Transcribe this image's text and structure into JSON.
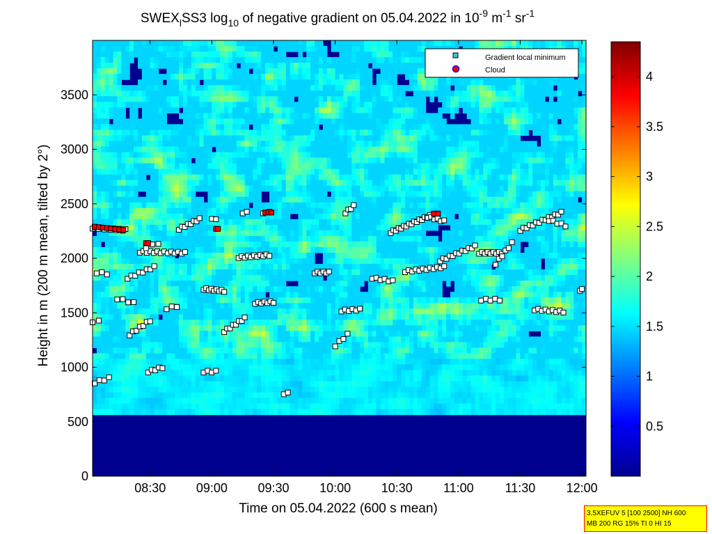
{
  "chart_data": {
    "type": "heatmap",
    "title": {
      "prefix": "SWEX",
      "sub_index": "l",
      "mid": "SS3 log",
      "sub_ten": "10",
      "middle": " of negative gradient on 05.04.2022 in 10",
      "exp_a": "-9",
      "unit_m": " m",
      "exp_b": "-1",
      "unit_sr": " sr",
      "exp_c": "-1"
    },
    "xlabel": "Time on 05.04.2022 (600 s mean)",
    "ylabel": "Height in m (200 m mean, tilted by 2°)",
    "x_ticks": [
      "08:30",
      "09:00",
      "09:30",
      "10:00",
      "10:30",
      "11:00",
      "11:30",
      "12:00"
    ],
    "x_tick_minutes": [
      510,
      540,
      570,
      600,
      630,
      660,
      690,
      720
    ],
    "xlim_minutes": [
      482,
      722
    ],
    "y_ticks": [
      0,
      500,
      1000,
      1500,
      2000,
      2500,
      3000,
      3500
    ],
    "ylim": [
      0,
      4000
    ],
    "colorbar": {
      "ticks": [
        "0.5",
        "1",
        "1.5",
        "2",
        "2.5",
        "3",
        "3.5",
        "4"
      ],
      "tick_values": [
        0.5,
        1,
        1.5,
        2,
        2.5,
        3,
        3.5,
        4
      ],
      "range": [
        0,
        4.35
      ],
      "colormap": "jet"
    },
    "legend": {
      "position": "top-right",
      "entries": [
        {
          "label": "Gradient local minimum",
          "marker": "square",
          "color": "#33cccc"
        },
        {
          "label": "Cloud",
          "marker": "circle",
          "color": "#ff0000",
          "edge": "#0000ff"
        }
      ]
    },
    "minima_tracks": [
      {
        "t": [
          482,
          498
        ],
        "h": [
          2280,
          2260
        ],
        "n": 12
      },
      {
        "t": [
          494,
          502
        ],
        "h": [
          1630,
          1590
        ],
        "n": 4
      },
      {
        "t": [
          484,
          489
        ],
        "h": [
          1870,
          1860
        ],
        "n": 3
      },
      {
        "t": [
          482,
          485
        ],
        "h": [
          1420,
          1420
        ],
        "n": 2
      },
      {
        "t": [
          483,
          490
        ],
        "h": [
          860,
          900
        ],
        "n": 4
      },
      {
        "t": [
          499,
          512
        ],
        "h": [
          1820,
          1920
        ],
        "n": 8
      },
      {
        "t": [
          500,
          510
        ],
        "h": [
          1300,
          1430
        ],
        "n": 7
      },
      {
        "t": [
          505,
          527
        ],
        "h": [
          2060,
          2050
        ],
        "n": 14
      },
      {
        "t": [
          509,
          516
        ],
        "h": [
          960,
          1000
        ],
        "n": 5
      },
      {
        "t": [
          508,
          514
        ],
        "h": [
          2100,
          2140
        ],
        "n": 3
      },
      {
        "t": [
          518,
          523
        ],
        "h": [
          1540,
          1560
        ],
        "n": 3
      },
      {
        "t": [
          524,
          534
        ],
        "h": [
          2270,
          2360
        ],
        "n": 8
      },
      {
        "t": [
          536,
          546
        ],
        "h": [
          1720,
          1700
        ],
        "n": 9
      },
      {
        "t": [
          536,
          542
        ],
        "h": [
          960,
          960
        ],
        "n": 4
      },
      {
        "t": [
          540,
          542
        ],
        "h": [
          2370,
          2350
        ],
        "n": 2
      },
      {
        "t": [
          546,
          556
        ],
        "h": [
          1330,
          1450
        ],
        "n": 8
      },
      {
        "t": [
          553,
          568
        ],
        "h": [
          2010,
          2030
        ],
        "n": 11
      },
      {
        "t": [
          561,
          570
        ],
        "h": [
          1590,
          1600
        ],
        "n": 7
      },
      {
        "t": [
          555,
          557
        ],
        "h": [
          2420,
          2420
        ],
        "n": 2
      },
      {
        "t": [
          565,
          568
        ],
        "h": [
          2420,
          2420
        ],
        "n": 2
      },
      {
        "t": [
          575,
          577
        ],
        "h": [
          760,
          760
        ],
        "n": 2
      },
      {
        "t": [
          590,
          597
        ],
        "h": [
          1870,
          1870
        ],
        "n": 6
      },
      {
        "t": [
          600,
          606
        ],
        "h": [
          1200,
          1300
        ],
        "n": 4
      },
      {
        "t": [
          603,
          612
        ],
        "h": [
          1520,
          1530
        ],
        "n": 6
      },
      {
        "t": [
          605,
          609
        ],
        "h": [
          2420,
          2480
        ],
        "n": 4
      },
      {
        "t": [
          618,
          628
        ],
        "h": [
          1820,
          1790
        ],
        "n": 6
      },
      {
        "t": [
          627,
          646
        ],
        "h": [
          2240,
          2390
        ],
        "n": 16
      },
      {
        "t": [
          634,
          653
        ],
        "h": [
          1880,
          1920
        ],
        "n": 12
      },
      {
        "t": [
          645,
          653
        ],
        "h": [
          2380,
          2340
        ],
        "n": 6
      },
      {
        "t": [
          651,
          668
        ],
        "h": [
          1980,
          2110
        ],
        "n": 12
      },
      {
        "t": [
          670,
          681
        ],
        "h": [
          2050,
          2050
        ],
        "n": 9
      },
      {
        "t": [
          671,
          680
        ],
        "h": [
          1620,
          1620
        ],
        "n": 5
      },
      {
        "t": [
          678,
          686
        ],
        "h": [
          1950,
          2140
        ],
        "n": 6
      },
      {
        "t": [
          690,
          710
        ],
        "h": [
          2260,
          2420
        ],
        "n": 14
      },
      {
        "t": [
          697,
          711
        ],
        "h": [
          1530,
          1510
        ],
        "n": 9
      },
      {
        "t": [
          704,
          712
        ],
        "h": [
          2350,
          2300
        ],
        "n": 5
      },
      {
        "t": [
          719,
          720
        ],
        "h": [
          1710,
          1710
        ],
        "n": 2
      }
    ],
    "cloud_markers": [
      {
        "t": [
          483,
          497
        ],
        "h": [
          2290,
          2260
        ],
        "n": 8
      },
      {
        "t": [
          508,
          509
        ],
        "h": [
          2140,
          2140
        ],
        "n": 2
      },
      {
        "t": [
          542,
          543
        ],
        "h": [
          2270,
          2270
        ],
        "n": 2
      },
      {
        "t": [
          566,
          569
        ],
        "h": [
          2420,
          2420
        ],
        "n": 3
      },
      {
        "t": [
          648,
          650
        ],
        "h": [
          2410,
          2410
        ],
        "n": 2
      }
    ]
  },
  "info_box": {
    "line1": "3.5XEFUV 5 [100 2500] NH 600",
    "line2": "MB 200 RG 15% TI 0 HI 15"
  }
}
